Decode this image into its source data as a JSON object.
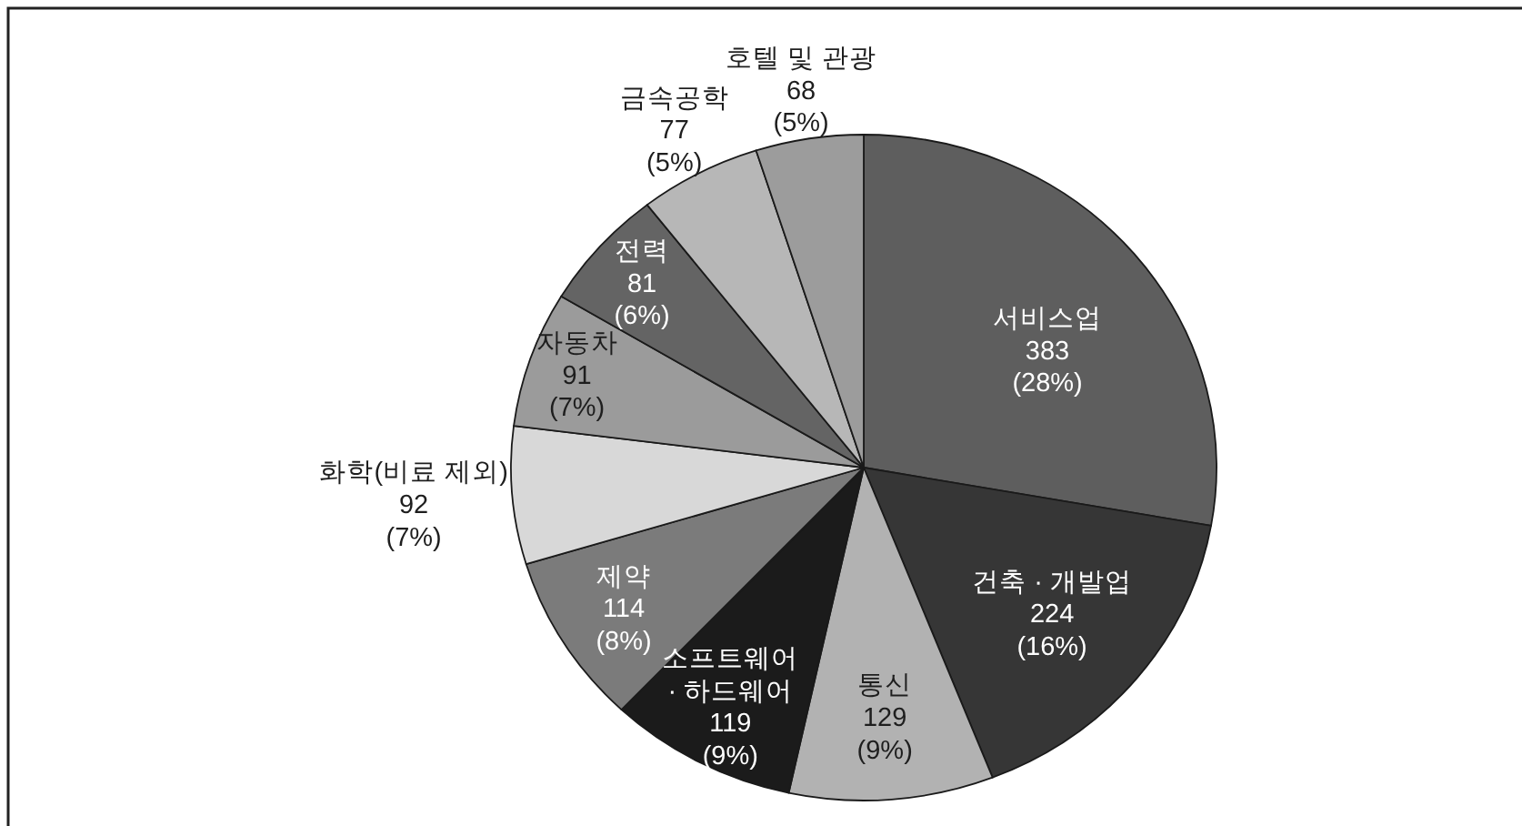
{
  "chart_data": {
    "type": "pie",
    "categories": [
      "서비스업",
      "건축 · 개발업",
      "통신",
      "소프트웨어 · 하드웨어",
      "제약",
      "화학(비료 제외)",
      "자동차",
      "전력",
      "금속공학",
      "호텔 및 관광"
    ],
    "values": [
      383,
      224,
      129,
      119,
      114,
      92,
      91,
      81,
      77,
      68
    ],
    "colors": [
      "#5e5e5e",
      "#363636",
      "#b2b2b2",
      "#1b1b1b",
      "#7b7b7b",
      "#d8d8d8",
      "#9b9b9b",
      "#646464",
      "#b7b7b7",
      "#9c9c9c"
    ],
    "value_labels": [
      "383\n(28%)",
      "224\n(16%)",
      "129\n(9%)",
      "119\n(9%)",
      "114\n(8%)",
      "92\n(7%)",
      "91\n(7%)",
      "81\n(6%)",
      "77\n(5%)",
      "68\n(5%)"
    ]
  }
}
